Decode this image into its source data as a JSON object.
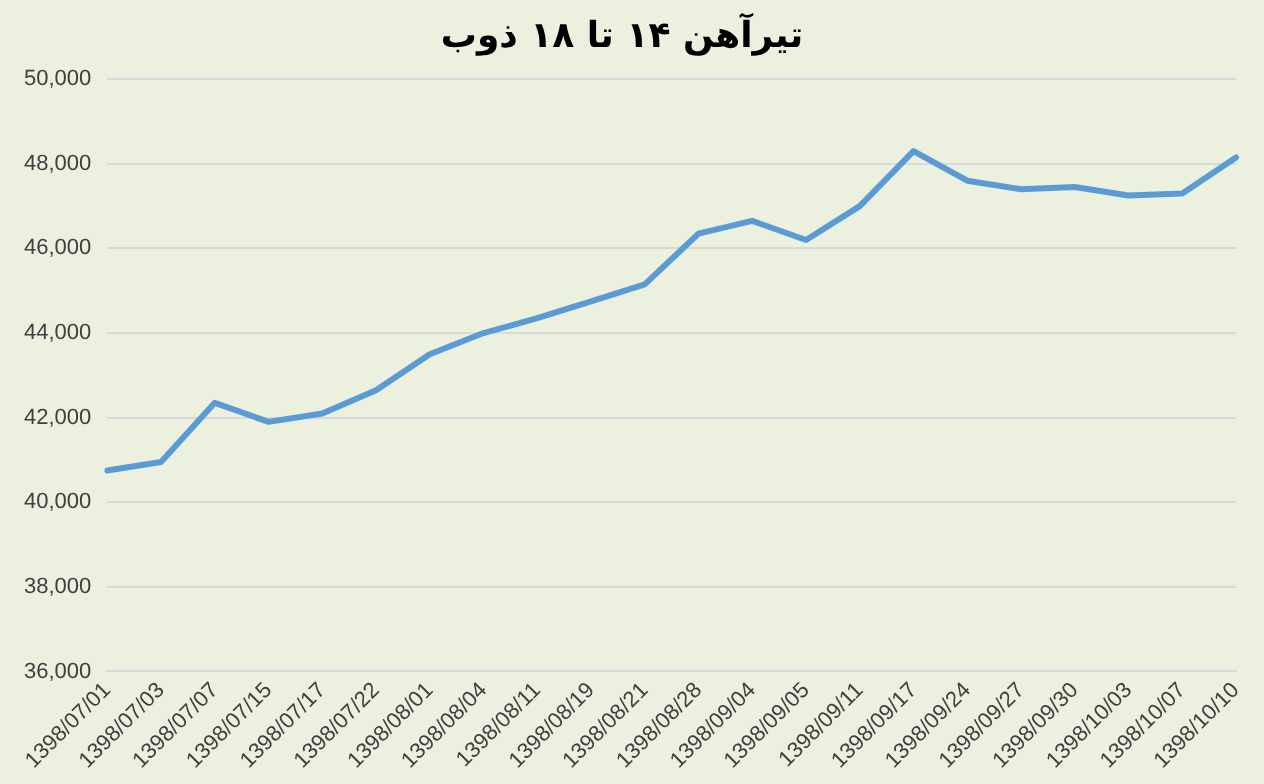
{
  "chart_data": {
    "type": "line",
    "title": "تیرآهن ۱۴ تا ۱۸ ذوب",
    "categories": [
      "1398/07/01",
      "1398/07/03",
      "1398/07/07",
      "1398/07/15",
      "1398/07/17",
      "1398/07/22",
      "1398/08/01",
      "1398/08/04",
      "1398/08/11",
      "1398/08/19",
      "1398/08/21",
      "1398/08/28",
      "1398/09/04",
      "1398/09/05",
      "1398/09/11",
      "1398/09/17",
      "1398/09/24",
      "1398/09/27",
      "1398/09/30",
      "1398/10/03",
      "1398/10/07",
      "1398/10/10"
    ],
    "series": [
      {
        "color": "#5b9bd5",
        "values": [
          40750,
          40950,
          42350,
          41900,
          42100,
          42650,
          43500,
          44000,
          44350,
          44750,
          45150,
          46350,
          46650,
          46200,
          47000,
          48300,
          47600,
          47400,
          47450,
          47250,
          47300,
          48150
        ]
      }
    ],
    "ylim": [
      36000,
      50000
    ],
    "yticks": [
      {
        "value": 36000,
        "label": "36,000"
      },
      {
        "value": 38000,
        "label": "38,000"
      },
      {
        "value": 40000,
        "label": "40,000"
      },
      {
        "value": 42000,
        "label": "42,000"
      },
      {
        "value": 44000,
        "label": "44,000"
      },
      {
        "value": 46000,
        "label": "46,000"
      },
      {
        "value": 48000,
        "label": "48,000"
      },
      {
        "value": 50000,
        "label": "50,000"
      }
    ],
    "grid": "y",
    "legend": false,
    "marker": "none",
    "line_style": "solid"
  }
}
